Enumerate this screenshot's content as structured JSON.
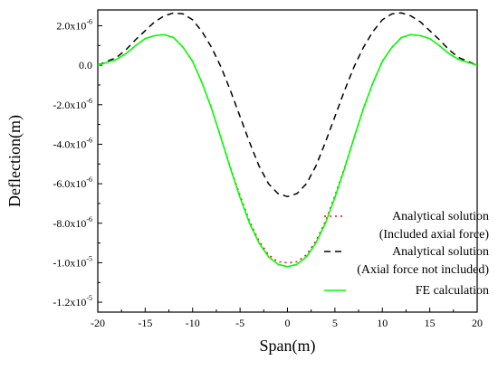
{
  "chart_data": {
    "type": "line",
    "title": "",
    "xlabel": "Span(m)",
    "ylabel": "Deflection(m)",
    "xlim": [
      -20,
      20
    ],
    "ylim": [
      -1.25e-05,
      2.8e-06
    ],
    "grid": false,
    "legend_position": "bottom-right",
    "x_ticks": [
      -20,
      -15,
      -10,
      -5,
      0,
      5,
      10,
      15,
      20
    ],
    "x_tick_labels": [
      "-20",
      "-15",
      "-10",
      "-5",
      "0",
      "5",
      "10",
      "15",
      "20"
    ],
    "y_ticks": [
      {
        "value": 2e-06,
        "mantissa": "2.0x10",
        "exp": "-6"
      },
      {
        "value": 0,
        "mantissa": "0.0",
        "exp": ""
      },
      {
        "value": -2e-06,
        "mantissa": "-2.0x10",
        "exp": "-6"
      },
      {
        "value": -4e-06,
        "mantissa": "-4.0x10",
        "exp": "-6"
      },
      {
        "value": -6e-06,
        "mantissa": "-6.0x10",
        "exp": "-6"
      },
      {
        "value": -8e-06,
        "mantissa": "-8.0x10",
        "exp": "-6"
      },
      {
        "value": -1e-05,
        "mantissa": "-1.0x10",
        "exp": "-5"
      },
      {
        "value": -1.2e-05,
        "mantissa": "-1.2x10",
        "exp": "-5"
      }
    ],
    "x": [
      -20,
      -18,
      -17,
      -16,
      -15,
      -14,
      -13,
      -12,
      -11,
      -10,
      -9,
      -8,
      -7,
      -6,
      -5,
      -4,
      -3,
      -2,
      -1,
      0,
      1,
      2,
      3,
      4,
      5,
      6,
      7,
      8,
      9,
      10,
      11,
      12,
      13,
      14,
      15,
      16,
      17,
      18,
      20
    ],
    "series": [
      {
        "name": "Analytical solution (Included axial force)",
        "color": "#ff0000",
        "dash": "dotted",
        "values": [
          0,
          3e-07,
          6e-07,
          1e-06,
          1.35e-06,
          1.5e-06,
          1.55e-06,
          1.4e-06,
          9e-07,
          2e-07,
          -9e-07,
          -2.2e-06,
          -3.7e-06,
          -5.2e-06,
          -6.6e-06,
          -7.9e-06,
          -8.9e-06,
          -9.6e-06,
          -9.95e-06,
          -1e-05,
          -9.95e-06,
          -9.6e-06,
          -8.9e-06,
          -7.9e-06,
          -6.6e-06,
          -5.2e-06,
          -3.7e-06,
          -2.2e-06,
          -9e-07,
          2e-07,
          9e-07,
          1.4e-06,
          1.55e-06,
          1.5e-06,
          1.35e-06,
          1e-06,
          6e-07,
          3e-07,
          0
        ]
      },
      {
        "name": "Analytical solution (Axial force not included)",
        "color": "#000000",
        "dash": "dashed",
        "values": [
          0,
          4e-07,
          8e-07,
          1.3e-06,
          1.75e-06,
          2.2e-06,
          2.5e-06,
          2.65e-06,
          2.6e-06,
          2.3e-06,
          1.7e-06,
          9e-07,
          -1e-07,
          -1.3e-06,
          -2.6e-06,
          -3.9e-06,
          -5.1e-06,
          -6e-06,
          -6.5e-06,
          -6.65e-06,
          -6.5e-06,
          -6e-06,
          -5.1e-06,
          -3.9e-06,
          -2.6e-06,
          -1.3e-06,
          -1e-07,
          9e-07,
          1.7e-06,
          2.3e-06,
          2.6e-06,
          2.65e-06,
          2.5e-06,
          2.2e-06,
          1.75e-06,
          1.3e-06,
          8e-07,
          4e-07,
          0
        ]
      },
      {
        "name": "FE calculation",
        "color": "#00ff00",
        "dash": "solid",
        "values": [
          0,
          3e-07,
          6e-07,
          1e-06,
          1.35e-06,
          1.5e-06,
          1.55e-06,
          1.4e-06,
          9e-07,
          2e-07,
          -9e-07,
          -2.2e-06,
          -3.7e-06,
          -5.25e-06,
          -6.7e-06,
          -8e-06,
          -9e-06,
          -9.7e-06,
          -1.008e-05,
          -1.02e-05,
          -1.008e-05,
          -9.7e-06,
          -9e-06,
          -8e-06,
          -6.7e-06,
          -5.25e-06,
          -3.7e-06,
          -2.2e-06,
          -9e-07,
          2e-07,
          9e-07,
          1.4e-06,
          1.55e-06,
          1.5e-06,
          1.35e-06,
          1e-06,
          6e-07,
          3e-07,
          0
        ]
      }
    ],
    "legend": [
      {
        "line1": "Analytical solution",
        "line2": "(Included axial force)"
      },
      {
        "line1": "Analytical solution",
        "line2": "(Axial force not included)"
      },
      {
        "line1": "FE calculation",
        "line2": ""
      }
    ]
  }
}
